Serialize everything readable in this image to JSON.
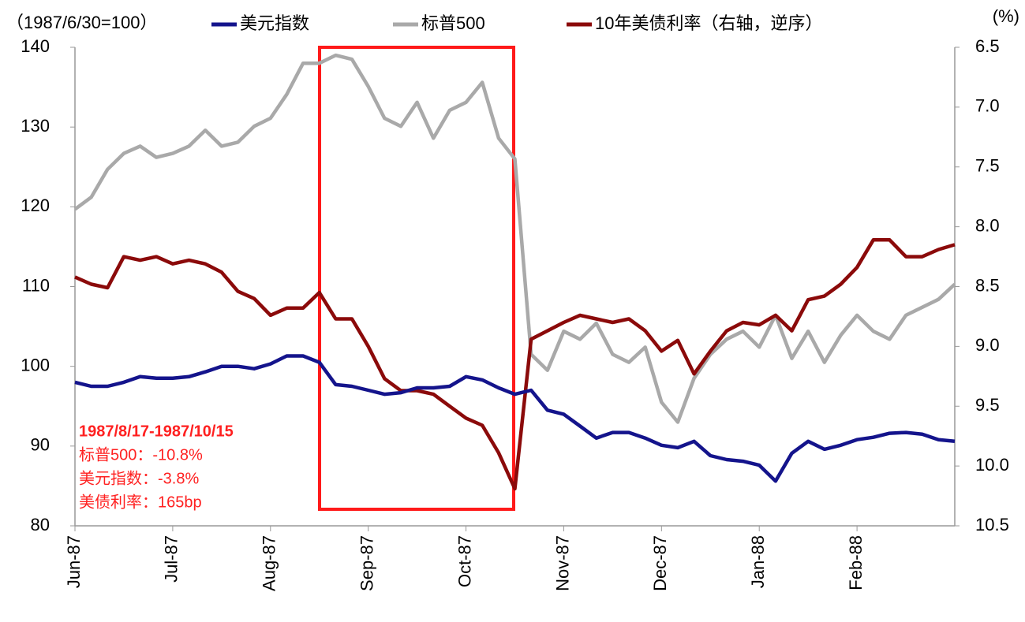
{
  "chart_data": {
    "type": "line",
    "y_label": "（1987/6/30=100）",
    "y2_label": "(%)",
    "annotations": [
      "1987/8/17-1987/10/15",
      "标普500：-10.8%",
      "美元指数：-3.8%",
      "美债利率：165bp"
    ],
    "categories": [
      "Jun-87",
      null,
      null,
      null,
      null,
      null,
      "Jul-87",
      null,
      null,
      null,
      null,
      null,
      "Aug-87",
      null,
      null,
      null,
      null,
      null,
      "Sep-87",
      null,
      null,
      null,
      null,
      null,
      "Oct-87",
      null,
      null,
      null,
      null,
      null,
      "Nov-87",
      null,
      null,
      null,
      null,
      null,
      "Dec-87",
      null,
      null,
      null,
      null,
      null,
      "Jan-88",
      null,
      null,
      null,
      null,
      null,
      "Feb-88",
      null,
      null,
      null,
      null,
      null,
      null
    ],
    "series": [
      {
        "name": "美元指数",
        "color": "#14148c",
        "values": [
          98.0,
          97.5,
          97.5,
          98.0,
          98.7,
          98.5,
          98.5,
          98.7,
          99.3,
          100.0,
          100.0,
          99.7,
          100.3,
          101.3,
          101.3,
          100.5,
          97.7,
          97.5,
          97.0,
          96.5,
          96.7,
          97.3,
          97.3,
          97.5,
          98.7,
          98.3,
          97.3,
          96.5,
          97.0,
          94.5,
          94.0,
          92.5,
          91.0,
          91.7,
          91.7,
          91.0,
          90.1,
          89.8,
          90.6,
          88.8,
          88.3,
          88.1,
          87.6,
          85.6,
          89.1,
          90.6,
          89.6,
          90.1,
          90.8,
          91.1,
          91.6,
          91.7,
          91.5,
          90.8,
          90.6
        ]
      },
      {
        "name": "标普500",
        "color": "#a9a9a9",
        "values": [
          119.7,
          121.2,
          124.7,
          126.7,
          127.6,
          126.2,
          126.7,
          127.6,
          129.6,
          127.6,
          128.1,
          130.1,
          131.1,
          134.1,
          138.0,
          138.0,
          139.0,
          138.5,
          135.1,
          131.1,
          130.1,
          133.1,
          128.6,
          132.1,
          133.1,
          135.6,
          128.6,
          126.0,
          101.5,
          99.5,
          104.4,
          103.4,
          105.4,
          101.5,
          100.5,
          102.4,
          95.5,
          93.0,
          98.5,
          101.5,
          103.4,
          104.4,
          102.4,
          106.4,
          101.0,
          104.4,
          100.5,
          103.9,
          106.4,
          104.4,
          103.4,
          106.4,
          107.4,
          108.4,
          110.3
        ]
      },
      {
        "name": "10年美债利率（右轴，逆序）",
        "color": "#8b0a0a",
        "axis": "y2",
        "values": [
          8.42,
          8.48,
          8.51,
          8.25,
          8.28,
          8.25,
          8.31,
          8.28,
          8.31,
          8.38,
          8.54,
          8.6,
          8.74,
          8.68,
          8.68,
          8.55,
          8.77,
          8.77,
          9.0,
          9.27,
          9.37,
          9.37,
          9.4,
          9.5,
          9.6,
          9.66,
          9.89,
          10.19,
          8.94,
          8.87,
          8.8,
          8.74,
          8.77,
          8.8,
          8.77,
          8.87,
          9.04,
          8.95,
          9.23,
          9.04,
          8.87,
          8.8,
          8.82,
          8.74,
          8.87,
          8.61,
          8.58,
          8.48,
          8.34,
          8.11,
          8.11,
          8.25,
          8.25,
          8.19,
          8.15
        ]
      }
    ],
    "ylim": [
      80,
      140
    ],
    "yticks": [
      80,
      90,
      100,
      110,
      120,
      130,
      140
    ],
    "y2lim": [
      6.5,
      10.5
    ],
    "y2ticks": [
      6.5,
      {
        "value": 7,
        "label": "7.0"
      },
      7.5,
      {
        "value": 8,
        "label": "8.0"
      },
      8.5,
      {
        "value": 9,
        "label": "9.0"
      },
      9.5,
      {
        "value": 10,
        "label": "10.0"
      },
      10.5
    ],
    "y2_reversed": true,
    "grid": false,
    "legend": "top"
  }
}
